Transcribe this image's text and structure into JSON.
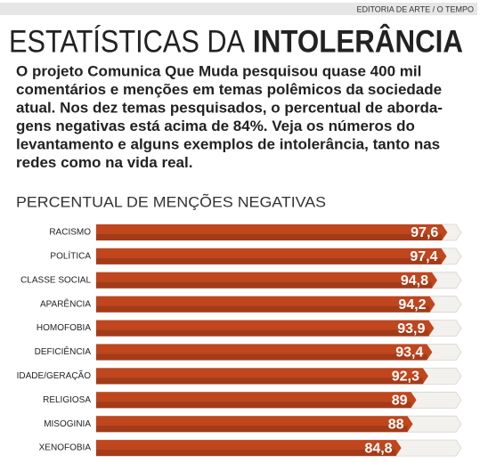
{
  "credit": "EDITORIA DE ARTE / O TEMPO",
  "headline": {
    "light": "ESTATÍSTICAS DA",
    "bold": "INTOLERÂNCIA"
  },
  "intro": [
    "O projeto Comunica Que Muda pesquisou quase 400 mil",
    "comentários e menções em temas polêmicos da sociedade",
    "atual. Nos dez temas pesquisados, o percentual de aborda-",
    "gens negativas está acima de 84%. Veja os números do",
    "levantamento e alguns exemplos de intolerância, tanto nas",
    "redes como na vida real."
  ],
  "chart_data": {
    "type": "bar",
    "orientation": "horizontal",
    "title": "PERCENTUAL DE MENÇÕES NEGATIVAS",
    "categories": [
      "RACISMO",
      "POLÍTICA",
      "CLASSE SOCIAL",
      "APARÊNCIA",
      "HOMOFOBIA",
      "DEFICIÊNCIA",
      "IDADE/GERAÇÃO",
      "RELIGIOSA",
      "MISOGINIA",
      "XENOFOBIA"
    ],
    "values": [
      97.6,
      97.4,
      94.8,
      94.2,
      93.9,
      93.4,
      92.3,
      89,
      88,
      84.8
    ],
    "value_labels": [
      "97,6",
      "97,4",
      "94,8",
      "94,2",
      "93,9",
      "93,4",
      "92,3",
      "89",
      "88",
      "84,8"
    ],
    "color": "#c0461e",
    "xlim": [
      0,
      100
    ]
  }
}
